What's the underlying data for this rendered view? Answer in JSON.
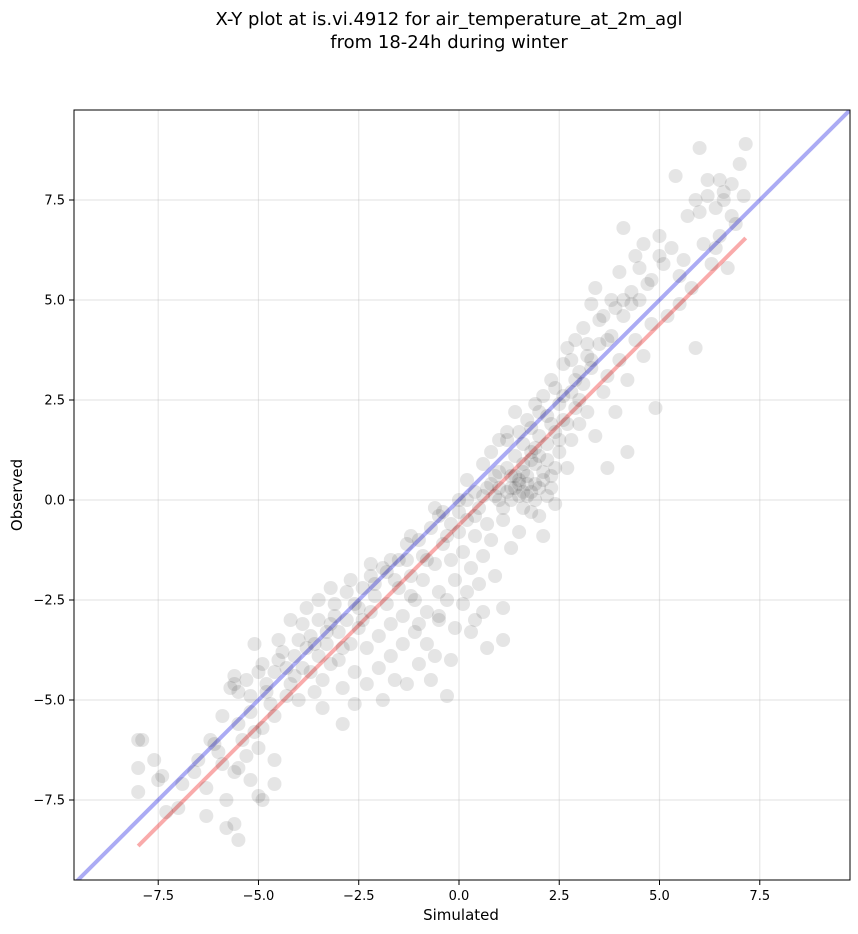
{
  "chart_data": {
    "type": "scatter",
    "title": "X-Y plot at is.vi.4912 for air_temperature_at_2m_agl",
    "subtitle": "from 18-24h during winter",
    "xlabel": "Simulated",
    "ylabel": "Observed",
    "xlim": [
      -9.6,
      9.75
    ],
    "ylim": [
      -9.5,
      9.75
    ],
    "xticks": [
      -7.5,
      -5.0,
      -2.5,
      0.0,
      2.5,
      5.0,
      7.5
    ],
    "yticks": [
      -7.5,
      -5.0,
      -2.5,
      0.0,
      2.5,
      5.0,
      7.5
    ],
    "xtick_labels": [
      "−7.5",
      "−5.0",
      "−2.5",
      "0.0",
      "2.5",
      "5.0",
      "7.5"
    ],
    "ytick_labels": [
      "−7.5",
      "−5.0",
      "−2.5",
      "0.0",
      "2.5",
      "5.0",
      "7.5"
    ],
    "grid": true,
    "point_color": "#000000",
    "point_opacity": 0.1,
    "identity_line": {
      "color": "#0000dd",
      "opacity": 0.33,
      "x": [
        -9.6,
        9.75
      ],
      "y": [
        -9.6,
        9.75
      ]
    },
    "fit_line": {
      "color": "#ee0000",
      "opacity": 0.33,
      "x": [
        -8.0,
        7.15
      ],
      "y": [
        -8.65,
        6.55
      ]
    },
    "points": [
      [
        -8.0,
        -6.0
      ],
      [
        -7.9,
        -6.0
      ],
      [
        -8.0,
        -6.7
      ],
      [
        -8.0,
        -7.3
      ],
      [
        -7.6,
        -6.5
      ],
      [
        -7.5,
        -7.0
      ],
      [
        -7.4,
        -6.9
      ],
      [
        -7.3,
        -7.8
      ],
      [
        -7.0,
        -7.7
      ],
      [
        -6.9,
        -7.1
      ],
      [
        -6.6,
        -6.8
      ],
      [
        -6.3,
        -7.2
      ],
      [
        -6.2,
        -6.0
      ],
      [
        -6.3,
        -7.9
      ],
      [
        -6.0,
        -6.3
      ],
      [
        -5.9,
        -6.6
      ],
      [
        -5.8,
        -7.5
      ],
      [
        -5.8,
        -8.2
      ],
      [
        -5.6,
        -8.1
      ],
      [
        -5.5,
        -8.5
      ],
      [
        -5.6,
        -6.8
      ],
      [
        -5.5,
        -6.7
      ],
      [
        -5.3,
        -6.4
      ],
      [
        -5.2,
        -7.0
      ],
      [
        -5.0,
        -7.4
      ],
      [
        -4.9,
        -7.5
      ],
      [
        -4.6,
        -7.1
      ],
      [
        -4.6,
        -6.5
      ],
      [
        -5.0,
        -6.2
      ],
      [
        -4.9,
        -5.7
      ],
      [
        -5.1,
        -5.8
      ],
      [
        -5.4,
        -6.0
      ],
      [
        -5.7,
        -4.7
      ],
      [
        -5.6,
        -4.6
      ],
      [
        -5.5,
        -4.8
      ],
      [
        -5.6,
        -4.4
      ],
      [
        -5.3,
        -4.5
      ],
      [
        -5.2,
        -4.9
      ],
      [
        -5.0,
        -4.3
      ],
      [
        -5.1,
        -3.6
      ],
      [
        -4.9,
        -4.1
      ],
      [
        -4.8,
        -4.6
      ],
      [
        -4.7,
        -5.1
      ],
      [
        -4.6,
        -5.4
      ],
      [
        -4.5,
        -4.0
      ],
      [
        -4.4,
        -3.8
      ],
      [
        -4.3,
        -4.2
      ],
      [
        -4.2,
        -4.6
      ],
      [
        -4.1,
        -4.4
      ],
      [
        -4.0,
        -5.0
      ],
      [
        -4.0,
        -3.5
      ],
      [
        -3.9,
        -3.1
      ],
      [
        -3.8,
        -3.7
      ],
      [
        -3.7,
        -3.4
      ],
      [
        -3.7,
        -4.3
      ],
      [
        -3.6,
        -4.8
      ],
      [
        -3.5,
        -3.0
      ],
      [
        -3.5,
        -3.9
      ],
      [
        -3.4,
        -4.5
      ],
      [
        -3.4,
        -5.2
      ],
      [
        -3.3,
        -3.6
      ],
      [
        -3.2,
        -4.1
      ],
      [
        -3.2,
        -3.1
      ],
      [
        -3.1,
        -2.6
      ],
      [
        -3.0,
        -3.3
      ],
      [
        -3.0,
        -4.0
      ],
      [
        -2.9,
        -4.7
      ],
      [
        -2.9,
        -5.6
      ],
      [
        -2.8,
        -3.0
      ],
      [
        -2.8,
        -2.3
      ],
      [
        -2.7,
        -3.6
      ],
      [
        -2.6,
        -4.3
      ],
      [
        -2.6,
        -5.1
      ],
      [
        -2.5,
        -2.7
      ],
      [
        -2.5,
        -3.2
      ],
      [
        -2.4,
        -2.2
      ],
      [
        -2.3,
        -3.7
      ],
      [
        -2.3,
        -4.6
      ],
      [
        -2.2,
        -2.8
      ],
      [
        -2.2,
        -1.9
      ],
      [
        -2.1,
        -2.4
      ],
      [
        -2.0,
        -3.4
      ],
      [
        -2.0,
        -4.2
      ],
      [
        -1.9,
        -5.0
      ],
      [
        -1.9,
        -1.7
      ],
      [
        -1.8,
        -2.6
      ],
      [
        -1.7,
        -3.1
      ],
      [
        -1.7,
        -3.9
      ],
      [
        -1.6,
        -4.5
      ],
      [
        -1.5,
        -1.5
      ],
      [
        -1.5,
        -2.2
      ],
      [
        -1.4,
        -2.9
      ],
      [
        -1.4,
        -3.6
      ],
      [
        -1.3,
        -1.1
      ],
      [
        -1.3,
        -4.6
      ],
      [
        -1.2,
        -1.9
      ],
      [
        -1.1,
        -2.5
      ],
      [
        -1.1,
        -3.3
      ],
      [
        -1.0,
        -4.1
      ],
      [
        -0.9,
        -1.4
      ],
      [
        -0.9,
        -2.0
      ],
      [
        -0.8,
        -2.8
      ],
      [
        -0.8,
        -3.6
      ],
      [
        -0.7,
        -0.7
      ],
      [
        -0.7,
        -4.5
      ],
      [
        -0.6,
        -1.6
      ],
      [
        -0.5,
        -2.3
      ],
      [
        -0.5,
        -3.0
      ],
      [
        -0.4,
        -0.3
      ],
      [
        -0.4,
        -1.1
      ],
      [
        -0.3,
        -2.5
      ],
      [
        -0.3,
        -4.9
      ],
      [
        -0.2,
        -0.6
      ],
      [
        -0.2,
        -1.5
      ],
      [
        -0.1,
        -2.0
      ],
      [
        -0.1,
        -3.2
      ],
      [
        0.0,
        0.0
      ],
      [
        0.0,
        -0.8
      ],
      [
        0.1,
        -1.3
      ],
      [
        0.1,
        -2.6
      ],
      [
        0.2,
        0.5
      ],
      [
        0.2,
        -0.5
      ],
      [
        0.3,
        -1.7
      ],
      [
        0.3,
        -3.3
      ],
      [
        0.4,
        0.2
      ],
      [
        0.4,
        -0.9
      ],
      [
        0.5,
        -0.2
      ],
      [
        0.5,
        -2.1
      ],
      [
        0.6,
        0.9
      ],
      [
        0.6,
        -1.4
      ],
      [
        0.7,
        0.3
      ],
      [
        0.7,
        -0.6
      ],
      [
        0.8,
        1.2
      ],
      [
        0.8,
        -1.0
      ],
      [
        0.9,
        0.6
      ],
      [
        0.9,
        -1.9
      ],
      [
        1.0,
        1.5
      ],
      [
        1.0,
        0.0
      ],
      [
        1.1,
        -0.5
      ],
      [
        1.1,
        -2.7
      ],
      [
        1.2,
        0.8
      ],
      [
        1.2,
        1.7
      ],
      [
        1.3,
        0.3
      ],
      [
        1.3,
        -1.2
      ],
      [
        1.4,
        1.1
      ],
      [
        1.4,
        2.2
      ],
      [
        1.5,
        0.4
      ],
      [
        1.5,
        -0.8
      ],
      [
        1.6,
        1.4
      ],
      [
        1.6,
        0.2
      ],
      [
        1.7,
        2.0
      ],
      [
        1.7,
        0.6
      ],
      [
        1.8,
        -0.3
      ],
      [
        1.8,
        1.2
      ],
      [
        1.9,
        2.4
      ],
      [
        1.9,
        0.9
      ],
      [
        2.0,
        0.3
      ],
      [
        2.0,
        1.6
      ],
      [
        2.1,
        2.6
      ],
      [
        2.1,
        -0.9
      ],
      [
        2.2,
        1.0
      ],
      [
        2.2,
        2.1
      ],
      [
        2.3,
        0.6
      ],
      [
        2.3,
        3.0
      ],
      [
        2.4,
        1.7
      ],
      [
        2.4,
        -0.1
      ],
      [
        2.5,
        2.4
      ],
      [
        2.5,
        1.2
      ],
      [
        2.6,
        3.4
      ],
      [
        2.6,
        2.0
      ],
      [
        2.7,
        0.8
      ],
      [
        2.7,
        3.8
      ],
      [
        2.8,
        2.7
      ],
      [
        2.8,
        1.5
      ],
      [
        2.9,
        4.0
      ],
      [
        2.9,
        2.3
      ],
      [
        3.0,
        3.2
      ],
      [
        3.0,
        1.9
      ],
      [
        3.1,
        4.3
      ],
      [
        3.1,
        2.9
      ],
      [
        3.2,
        3.6
      ],
      [
        3.2,
        2.2
      ],
      [
        3.3,
        4.9
      ],
      [
        3.3,
        3.3
      ],
      [
        3.4,
        1.6
      ],
      [
        3.4,
        5.3
      ],
      [
        3.5,
        3.9
      ],
      [
        3.6,
        2.7
      ],
      [
        3.6,
        4.6
      ],
      [
        3.7,
        0.8
      ],
      [
        3.7,
        3.1
      ],
      [
        3.8,
        5.0
      ],
      [
        3.8,
        4.1
      ],
      [
        3.9,
        2.2
      ],
      [
        4.0,
        5.7
      ],
      [
        4.0,
        3.5
      ],
      [
        4.1,
        6.8
      ],
      [
        4.1,
        4.6
      ],
      [
        4.2,
        3.0
      ],
      [
        4.2,
        1.2
      ],
      [
        4.3,
        5.2
      ],
      [
        4.4,
        6.1
      ],
      [
        4.4,
        4.0
      ],
      [
        4.5,
        5.0
      ],
      [
        4.6,
        3.6
      ],
      [
        4.6,
        6.4
      ],
      [
        4.7,
        5.4
      ],
      [
        4.8,
        4.4
      ],
      [
        4.9,
        2.3
      ],
      [
        5.0,
        6.6
      ],
      [
        5.1,
        5.9
      ],
      [
        5.2,
        4.6
      ],
      [
        5.3,
        6.3
      ],
      [
        5.4,
        8.1
      ],
      [
        5.5,
        5.6
      ],
      [
        5.5,
        4.9
      ],
      [
        5.6,
        6.0
      ],
      [
        5.7,
        7.1
      ],
      [
        5.8,
        5.3
      ],
      [
        5.9,
        3.8
      ],
      [
        6.0,
        7.2
      ],
      [
        6.0,
        8.8
      ],
      [
        6.1,
        6.4
      ],
      [
        6.2,
        7.6
      ],
      [
        6.3,
        5.9
      ],
      [
        6.4,
        7.3
      ],
      [
        6.5,
        6.6
      ],
      [
        6.5,
        8.0
      ],
      [
        6.6,
        7.5
      ],
      [
        6.7,
        5.8
      ],
      [
        6.8,
        7.9
      ],
      [
        6.9,
        6.9
      ],
      [
        7.0,
        8.4
      ],
      [
        7.1,
        7.6
      ],
      [
        7.15,
        8.9
      ],
      [
        6.6,
        7.7
      ],
      [
        6.2,
        8.0
      ],
      [
        5.9,
        7.5
      ],
      [
        6.4,
        6.3
      ],
      [
        6.8,
        7.1
      ],
      [
        -6.5,
        -6.5
      ],
      [
        -6.1,
        -6.1
      ],
      [
        -5.9,
        -5.4
      ],
      [
        -5.5,
        -5.6
      ],
      [
        -5.2,
        -5.3
      ],
      [
        -4.8,
        -4.8
      ],
      [
        -4.6,
        -4.3
      ],
      [
        -4.3,
        -4.9
      ],
      [
        -4.1,
        -3.9
      ],
      [
        -3.9,
        -4.2
      ],
      [
        -3.6,
        -3.6
      ],
      [
        -3.3,
        -3.3
      ],
      [
        -3.1,
        -2.9
      ],
      [
        -2.9,
        -3.7
      ],
      [
        -2.6,
        -2.6
      ],
      [
        -2.4,
        -3.0
      ],
      [
        -2.1,
        -2.1
      ],
      [
        -1.8,
        -1.8
      ],
      [
        -1.6,
        -2.0
      ],
      [
        -1.3,
        -1.5
      ],
      [
        -1.0,
        -1.0
      ],
      [
        -0.8,
        -1.5
      ],
      [
        -0.5,
        -0.4
      ],
      [
        -0.3,
        -0.9
      ],
      [
        0.0,
        -0.3
      ],
      [
        0.2,
        0.0
      ],
      [
        0.4,
        -0.4
      ],
      [
        0.6,
        0.1
      ],
      [
        0.8,
        0.4
      ],
      [
        1.0,
        0.7
      ],
      [
        1.2,
        0.2
      ],
      [
        1.4,
        0.6
      ],
      [
        1.5,
        1.7
      ],
      [
        1.6,
        0.9
      ],
      [
        1.7,
        0.1
      ],
      [
        1.8,
        1.8
      ],
      [
        1.9,
        0.4
      ],
      [
        2.0,
        1.1
      ],
      [
        2.0,
        2.2
      ],
      [
        2.1,
        0.7
      ],
      [
        2.2,
        1.4
      ],
      [
        2.3,
        1.9
      ],
      [
        2.3,
        0.3
      ],
      [
        2.4,
        2.8
      ],
      [
        2.5,
        1.5
      ],
      [
        2.6,
        2.6
      ],
      [
        2.7,
        1.9
      ],
      [
        2.8,
        3.5
      ],
      [
        2.9,
        3.0
      ],
      [
        3.0,
        2.5
      ],
      [
        3.2,
        3.9
      ],
      [
        3.3,
        3.5
      ],
      [
        3.5,
        4.5
      ],
      [
        3.7,
        4.0
      ],
      [
        3.9,
        4.8
      ],
      [
        4.1,
        5.0
      ],
      [
        4.3,
        4.9
      ],
      [
        4.5,
        5.8
      ],
      [
        4.8,
        5.5
      ],
      [
        5.0,
        6.1
      ],
      [
        1.2,
        1.5
      ],
      [
        1.3,
        0.0
      ],
      [
        1.5,
        0.1
      ],
      [
        1.6,
        -0.2
      ],
      [
        1.7,
        0.4
      ],
      [
        1.8,
        0.2
      ],
      [
        1.4,
        0.3
      ],
      [
        1.5,
        0.5
      ],
      [
        1.9,
        0.0
      ],
      [
        2.0,
        -0.4
      ],
      [
        1.0,
        0.3
      ],
      [
        1.1,
        -0.2
      ],
      [
        0.9,
        0.1
      ],
      [
        1.3,
        0.6
      ],
      [
        1.6,
        0.7
      ],
      [
        1.8,
        1.0
      ],
      [
        2.1,
        0.5
      ],
      [
        2.2,
        0.1
      ],
      [
        1.9,
        1.3
      ],
      [
        2.4,
        0.8
      ],
      [
        -3.8,
        -2.7
      ],
      [
        -3.5,
        -2.5
      ],
      [
        -3.2,
        -2.2
      ],
      [
        -2.7,
        -2.0
      ],
      [
        -2.2,
        -1.6
      ],
      [
        -1.7,
        -1.5
      ],
      [
        -1.2,
        -0.9
      ],
      [
        -0.6,
        -0.2
      ],
      [
        -4.2,
        -3.0
      ],
      [
        -4.5,
        -3.5
      ],
      [
        -1.0,
        -3.1
      ],
      [
        -0.6,
        -3.9
      ],
      [
        -0.2,
        -4.0
      ],
      [
        0.4,
        -3.0
      ],
      [
        0.7,
        -3.7
      ],
      [
        1.1,
        -3.5
      ],
      [
        0.6,
        -2.8
      ],
      [
        0.2,
        -2.3
      ],
      [
        -0.5,
        -2.9
      ],
      [
        -1.2,
        -2.4
      ]
    ]
  }
}
